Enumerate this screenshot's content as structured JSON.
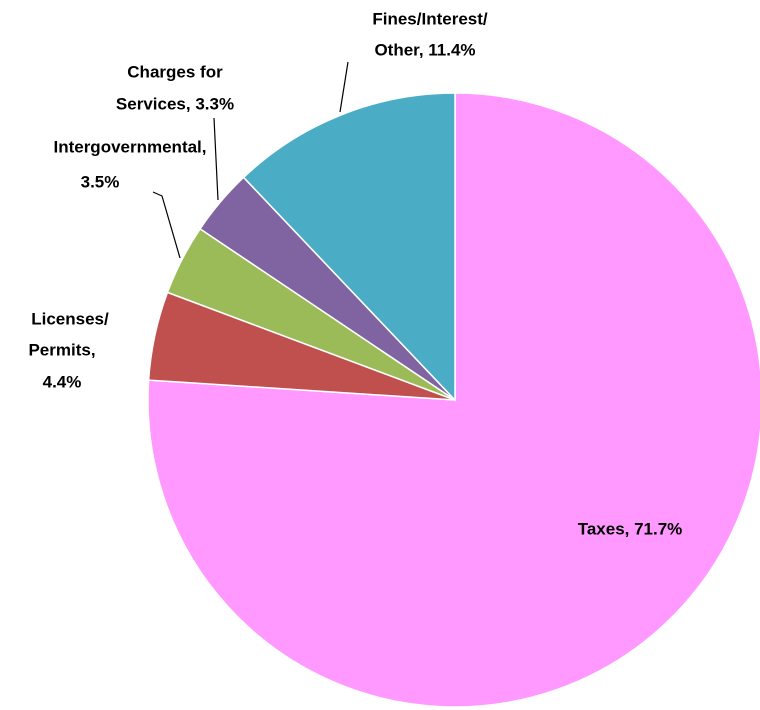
{
  "chart_data": {
    "type": "pie",
    "values": [
      71.7,
      4.4,
      3.5,
      3.3,
      11.4
    ],
    "value_labels": [
      [
        "Taxes, 71.7%"
      ],
      [
        "Licenses/",
        "Permits,",
        "4.4%"
      ],
      [
        "Intergovernmental,",
        "3.5%"
      ],
      [
        "Charges for",
        "Services, 3.3%"
      ],
      [
        "Fines/Interest/",
        "Other, 11.4%"
      ]
    ],
    "colors": [
      "#ff99ff",
      "#c0504d",
      "#9bbb59",
      "#8064a2",
      "#4bacc6"
    ]
  }
}
